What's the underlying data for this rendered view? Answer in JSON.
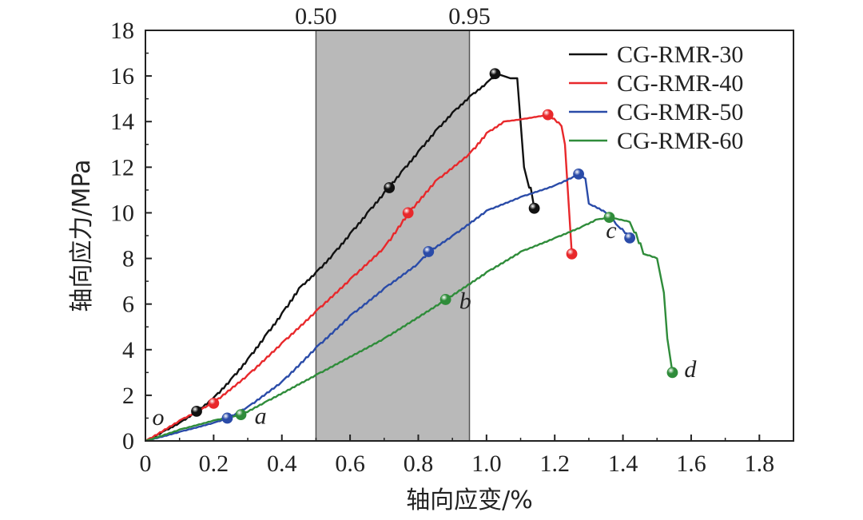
{
  "chart_data": {
    "type": "line",
    "xlabel": "轴向应变/%",
    "ylabel": "轴向应力/MPa",
    "xlim": [
      0,
      1.9
    ],
    "ylim": [
      0,
      18
    ],
    "xticks": [
      "0",
      "0.2",
      "0.4",
      "0.6",
      "0.8",
      "1.0",
      "1.2",
      "1.4",
      "1.6",
      "1.8"
    ],
    "yticks": [
      "0",
      "2",
      "4",
      "6",
      "8",
      "10",
      "12",
      "14",
      "16",
      "18"
    ],
    "grid": false,
    "legend_position": "top-right",
    "shaded_band": {
      "x": [
        0.5,
        0.95
      ],
      "labels": [
        "0.50",
        "0.95"
      ],
      "color": "#b9b9b9"
    },
    "point_labels": [
      {
        "text": "o",
        "x": 0.02,
        "y": 0.7
      },
      {
        "text": "a",
        "x": 0.32,
        "y": 0.75
      },
      {
        "text": "b",
        "x": 0.92,
        "y": 5.8
      },
      {
        "text": "c",
        "x": 1.35,
        "y": 8.9
      },
      {
        "text": "d",
        "x": 1.58,
        "y": 2.8
      }
    ],
    "series": [
      {
        "name": "CG-RMR-30",
        "color": "#111111",
        "x": [
          0,
          0.05,
          0.1,
          0.15,
          0.2,
          0.25,
          0.3,
          0.35,
          0.4,
          0.45,
          0.5,
          0.55,
          0.6,
          0.65,
          0.7,
          0.75,
          0.8,
          0.85,
          0.9,
          0.95,
          1.0,
          1.03,
          1.05,
          1.07,
          1.09,
          1.11,
          1.14
        ],
        "y": [
          0,
          0.4,
          0.8,
          1.3,
          1.9,
          2.7,
          3.6,
          4.6,
          5.6,
          6.7,
          7.4,
          8.2,
          9.1,
          10.0,
          10.9,
          11.8,
          12.7,
          13.6,
          14.4,
          15.1,
          15.7,
          16.1,
          16.0,
          15.9,
          15.9,
          12.0,
          10.2
        ]
      },
      {
        "name": "CG-RMR-40",
        "color": "#e8282b",
        "x": [
          0,
          0.1,
          0.2,
          0.3,
          0.4,
          0.5,
          0.6,
          0.7,
          0.77,
          0.85,
          0.95,
          1.0,
          1.05,
          1.1,
          1.18,
          1.22,
          1.23,
          1.25
        ],
        "y": [
          0,
          0.9,
          1.7,
          2.9,
          4.3,
          5.7,
          7.1,
          8.5,
          10.0,
          11.4,
          12.6,
          13.5,
          14.0,
          14.1,
          14.3,
          13.8,
          13.0,
          8.2
        ]
      },
      {
        "name": "CG-RMR-50",
        "color": "#2a4ba8",
        "x": [
          0,
          0.1,
          0.2,
          0.24,
          0.3,
          0.4,
          0.5,
          0.6,
          0.7,
          0.8,
          0.83,
          0.9,
          1.0,
          1.1,
          1.2,
          1.27,
          1.29,
          1.3,
          1.35,
          1.38,
          1.42
        ],
        "y": [
          0,
          0.4,
          0.8,
          1.0,
          1.5,
          2.6,
          4.1,
          5.5,
          6.7,
          7.8,
          8.3,
          9.0,
          10.1,
          10.7,
          11.2,
          11.7,
          11.5,
          10.4,
          10.0,
          9.5,
          8.9
        ]
      },
      {
        "name": "CG-RMR-60",
        "color": "#2f8c3a",
        "x": [
          0,
          0.1,
          0.2,
          0.28,
          0.35,
          0.5,
          0.7,
          0.88,
          1.0,
          1.1,
          1.2,
          1.28,
          1.32,
          1.36,
          1.42,
          1.46,
          1.5,
          1.52,
          1.53,
          1.545
        ],
        "y": [
          0,
          0.5,
          0.9,
          1.15,
          1.7,
          2.9,
          4.5,
          6.2,
          7.4,
          8.3,
          8.9,
          9.4,
          9.7,
          9.8,
          9.6,
          8.2,
          8.0,
          6.5,
          4.5,
          3.0
        ]
      }
    ],
    "markers": [
      {
        "series": 0,
        "x": 0.15,
        "y": 1.3
      },
      {
        "series": 0,
        "x": 0.715,
        "y": 11.1
      },
      {
        "series": 0,
        "x": 1.025,
        "y": 16.1
      },
      {
        "series": 0,
        "x": 1.14,
        "y": 10.2
      },
      {
        "series": 1,
        "x": 0.2,
        "y": 1.65
      },
      {
        "series": 1,
        "x": 0.77,
        "y": 10.0
      },
      {
        "series": 1,
        "x": 1.18,
        "y": 14.3
      },
      {
        "series": 1,
        "x": 1.25,
        "y": 8.2
      },
      {
        "series": 2,
        "x": 0.24,
        "y": 1.0
      },
      {
        "series": 2,
        "x": 0.83,
        "y": 8.3
      },
      {
        "series": 2,
        "x": 1.27,
        "y": 11.7
      },
      {
        "series": 2,
        "x": 1.42,
        "y": 8.9
      },
      {
        "series": 3,
        "x": 0.28,
        "y": 1.15
      },
      {
        "series": 3,
        "x": 0.88,
        "y": 6.2
      },
      {
        "series": 3,
        "x": 1.36,
        "y": 9.8
      },
      {
        "series": 3,
        "x": 1.545,
        "y": 3.0
      }
    ]
  }
}
